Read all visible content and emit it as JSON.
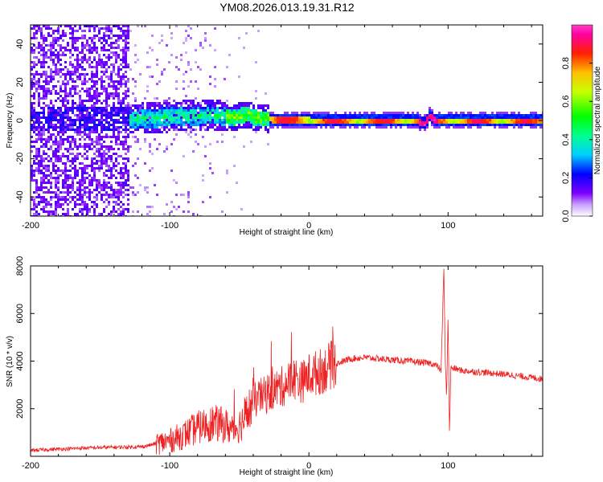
{
  "title": "YM08.2026.013.19.31.R12",
  "colors": {
    "line": "#ee2222",
    "background": "#ffffff",
    "frame": "#000000"
  },
  "chart_data": [
    {
      "type": "heatmap",
      "name": "spectrogram",
      "xlabel": "Height of straight line (km)",
      "ylabel": "Frequency (Hz)",
      "xlim": [
        -200,
        168
      ],
      "ylim": [
        -50,
        50
      ],
      "xticks": [
        -200,
        -100,
        0,
        100
      ],
      "yticks": [
        -40,
        -20,
        0,
        20,
        40
      ],
      "ridge": {
        "x": [
          -130,
          -110,
          -90,
          -70,
          -55,
          -45,
          -40,
          -30,
          -20,
          -10,
          0,
          20,
          40,
          60,
          78,
          82,
          86,
          90,
          120,
          168
        ],
        "y": [
          1.5,
          2,
          3,
          3.5,
          2,
          4,
          2,
          1.5,
          0.5,
          0.8,
          0.5,
          0.5,
          0.5,
          0.5,
          0.3,
          -1.5,
          3,
          0.5,
          0.5,
          0.5
        ]
      },
      "colorbar": {
        "label": "Normalized spectral amplitude",
        "range": [
          0,
          1
        ],
        "ticks": [
          0.0,
          0.2,
          0.4,
          0.6,
          0.8
        ]
      }
    },
    {
      "type": "line",
      "name": "snr",
      "xlabel": "Height of straight line (km)",
      "ylabel": "SNR (10 * v/v)",
      "xlim": [
        -200,
        168
      ],
      "ylim": [
        0,
        8000
      ],
      "xticks": [
        -200,
        -100,
        0,
        100
      ],
      "yticks": [
        2000,
        4000,
        6000,
        8000
      ],
      "series": [
        {
          "name": "SNR",
          "x": [
            -200,
            -180,
            -160,
            -140,
            -120,
            -100,
            -90,
            -80,
            -70,
            -60,
            -55,
            -50,
            -45,
            -40,
            -35,
            -30,
            -25,
            -20,
            -15,
            -10,
            -5,
            0,
            5,
            10,
            15,
            20,
            25,
            30,
            40,
            50,
            60,
            70,
            80,
            88,
            92,
            95,
            97,
            98,
            99,
            100,
            101,
            102,
            104,
            110,
            120,
            140,
            168
          ],
          "y": [
            250,
            300,
            350,
            380,
            400,
            650,
            900,
            1200,
            1400,
            1300,
            1100,
            1300,
            1700,
            2300,
            2500,
            2600,
            2800,
            2900,
            3100,
            3300,
            3100,
            3400,
            3500,
            3600,
            3800,
            3900,
            4000,
            4100,
            4150,
            4100,
            4050,
            4000,
            3950,
            3900,
            3800,
            3600,
            7900,
            4000,
            2500,
            6000,
            900,
            3700,
            3700,
            3600,
            3550,
            3450,
            3250
          ]
        }
      ]
    }
  ]
}
